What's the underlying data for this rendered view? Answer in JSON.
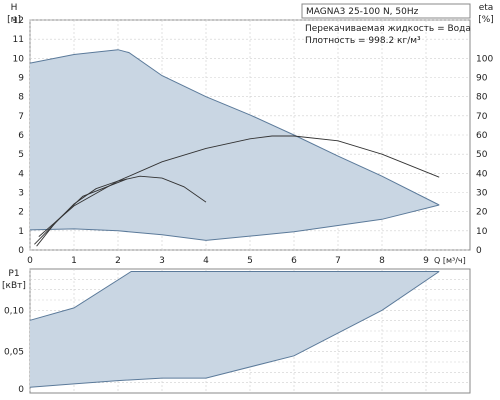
{
  "chart_data": [
    {
      "type": "line",
      "panel": "head-and-efficiency",
      "title": "MAGNA3 25-100 N, 50Hz",
      "notes": [
        "Перекачиваемая жидкость = Вода",
        "Плотность = 998.2 кг/м³"
      ],
      "xlabel": "Q [м³/ч]",
      "ylabel": "H",
      "ylabel_unit": "[м]",
      "y2label": "eta",
      "y2label_unit": "[%]",
      "xlim": [
        0,
        10
      ],
      "ylim": [
        0,
        12
      ],
      "y2lim": [
        0,
        120
      ],
      "x_ticks": [
        "0",
        "1",
        "2",
        "3",
        "4",
        "5",
        "6",
        "7",
        "8",
        "9"
      ],
      "y_ticks": [
        "0",
        "1",
        "2",
        "3",
        "4",
        "5",
        "6",
        "7",
        "8",
        "9",
        "10",
        "11",
        "12"
      ],
      "y2_ticks": [
        "0",
        "10",
        "20",
        "30",
        "40",
        "50",
        "60",
        "70",
        "80",
        "90",
        "100"
      ],
      "grid": true,
      "color_fill": "#c9d6e3",
      "color_line_blue": "#5b7a9a",
      "color_line_dark": "#333333",
      "series": [
        {
          "role": "head-max-curve",
          "points": [
            [
              0,
              9.75
            ],
            [
              1,
              10.2
            ],
            [
              1.6,
              10.35
            ],
            [
              2.0,
              10.45
            ],
            [
              2.25,
              10.3
            ],
            [
              3,
              9.1
            ],
            [
              4,
              8.0
            ],
            [
              5,
              7.05
            ],
            [
              6,
              6.0
            ],
            [
              7,
              4.9
            ],
            [
              8,
              3.85
            ],
            [
              9.3,
              2.35
            ]
          ]
        },
        {
          "role": "head-min-curve",
          "points": [
            [
              0,
              1.05
            ],
            [
              1,
              1.1
            ],
            [
              2,
              1.0
            ],
            [
              3,
              0.8
            ],
            [
              4,
              0.5
            ],
            [
              6,
              0.95
            ],
            [
              8,
              1.6
            ],
            [
              9.3,
              2.35
            ]
          ]
        },
        {
          "role": "efficiency-max",
          "points": [
            [
              0.2,
              7
            ],
            [
              1,
              23
            ],
            [
              2,
              36
            ],
            [
              3,
              46
            ],
            [
              4,
              53
            ],
            [
              5,
              58
            ],
            [
              5.5,
              59.5
            ],
            [
              6,
              59.5
            ],
            [
              7,
              57
            ],
            [
              8,
              50
            ],
            [
              9.3,
              38
            ]
          ]
        },
        {
          "role": "efficiency-mid",
          "points": [
            [
              0.1,
              3
            ],
            [
              1,
              24
            ],
            [
              1.5,
              32
            ],
            [
              2,
              36
            ],
            [
              2.5,
              38.5
            ],
            [
              3,
              37.5
            ],
            [
              3.5,
              33
            ],
            [
              4,
              25
            ]
          ]
        },
        {
          "role": "efficiency-min",
          "points": [
            [
              0.15,
              2
            ],
            [
              0.6,
              15
            ],
            [
              1.2,
              28
            ],
            [
              2.2,
              37
            ]
          ]
        }
      ]
    },
    {
      "type": "line",
      "panel": "power",
      "xlabel": "",
      "ylabel": "P1",
      "ylabel_unit": "[кВт]",
      "xlim": [
        0,
        10
      ],
      "ylim": [
        0,
        0.15
      ],
      "x_ticks": [
        "0",
        "1",
        "2",
        "3",
        "4",
        "5",
        "6",
        "7",
        "8",
        "9"
      ],
      "y_ticks": [
        "0",
        "0,05",
        "0,10"
      ],
      "grid": true,
      "series": [
        {
          "role": "power-max-curve",
          "points": [
            [
              0,
              0.088
            ],
            [
              1,
              0.103
            ],
            [
              2.3,
              0.147
            ],
            [
              9.3,
              0.147
            ]
          ]
        },
        {
          "role": "power-min-curve",
          "points": [
            [
              0,
              0.007
            ],
            [
              1,
              0.011
            ],
            [
              2,
              0.015
            ],
            [
              3,
              0.018
            ],
            [
              4,
              0.018
            ],
            [
              6,
              0.045
            ],
            [
              8,
              0.1
            ],
            [
              9.3,
              0.147
            ]
          ]
        }
      ]
    }
  ]
}
